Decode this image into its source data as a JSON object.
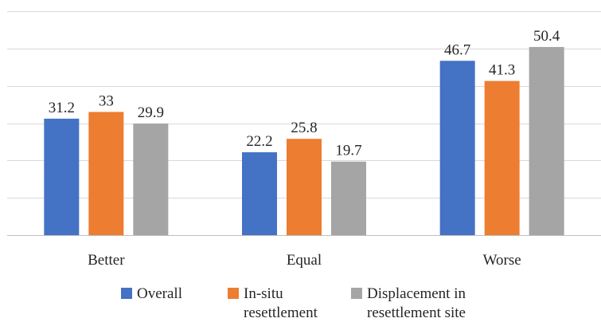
{
  "chart_data": {
    "type": "bar",
    "categories": [
      "Better",
      "Equal",
      "Worse"
    ],
    "series": [
      {
        "name": "Overall",
        "values": [
          31.2,
          22.2,
          46.7
        ],
        "color": "#4472C4"
      },
      {
        "name": "In-situ\nresettlement",
        "values": [
          33,
          25.8,
          41.3
        ],
        "color": "#ED7D31"
      },
      {
        "name": "Displacement in\nresettlement site",
        "values": [
          29.9,
          19.7,
          50.4
        ],
        "color": "#A5A5A5"
      }
    ],
    "ylim": [
      0,
      60
    ],
    "grid": true,
    "y_axis_labels_shown": false,
    "data_labels": true,
    "legend_position": "bottom"
  }
}
